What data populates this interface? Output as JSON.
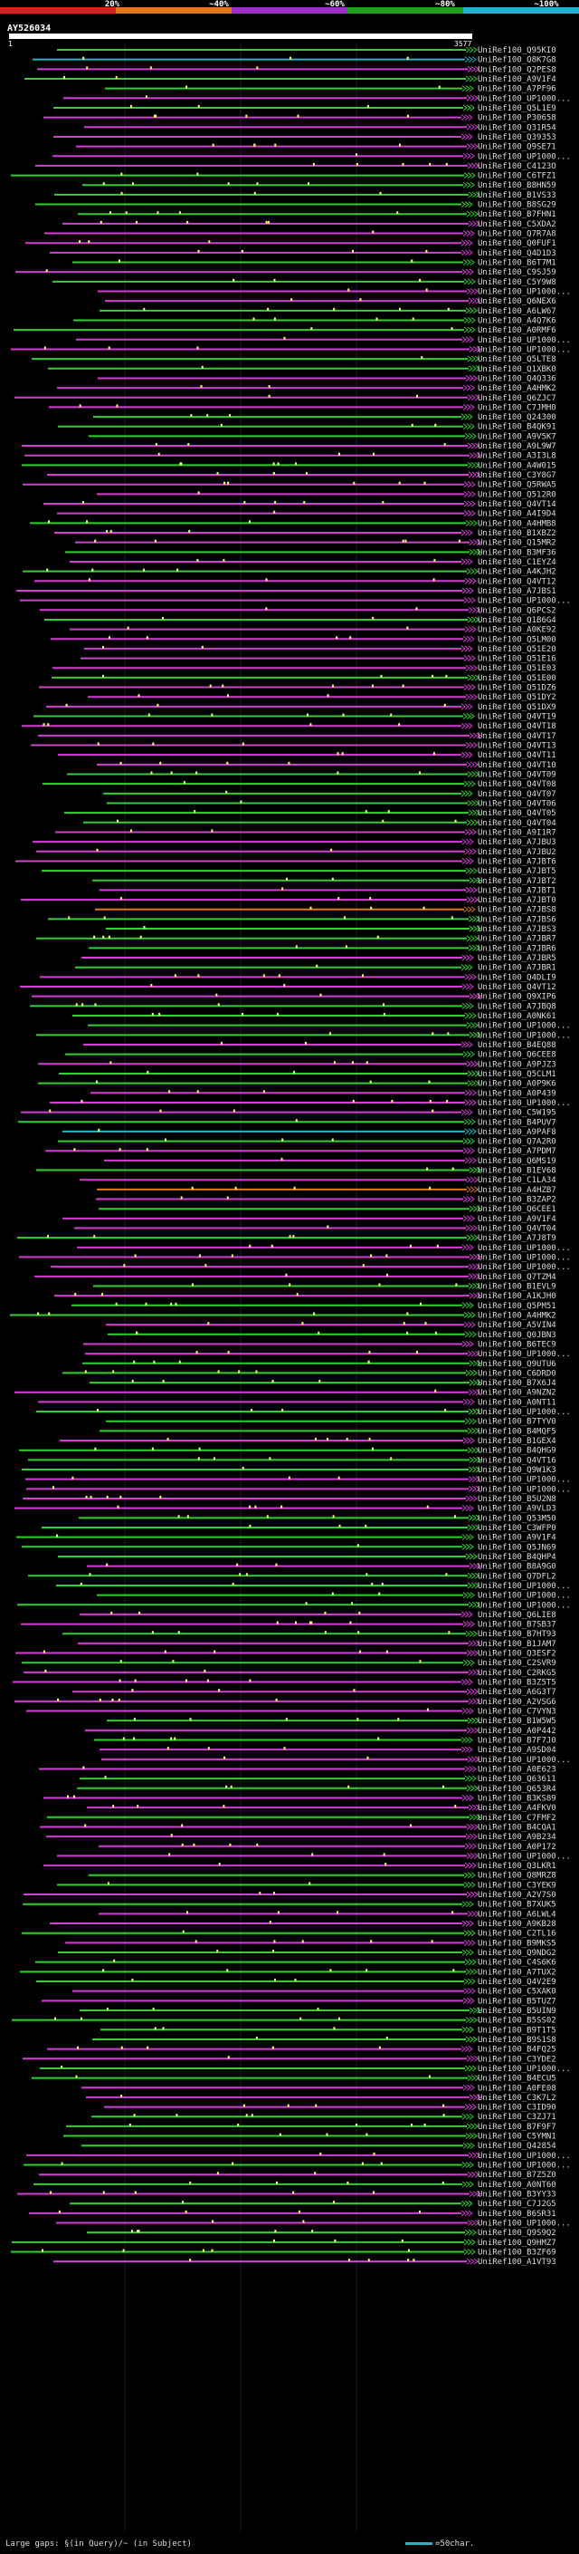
{
  "scale_labels": [
    "20%",
    "~40%",
    "~60%",
    "~80%",
    "~100%"
  ],
  "scale_colors": [
    "#d62020",
    "#e07820",
    "#9b30c8",
    "#20a020",
    "#20b0d0"
  ],
  "query": {
    "name": "AY526034",
    "start": "1",
    "end": "3577"
  },
  "hits": [
    "UniRef100_Q95KI0",
    "UniRef100_Q8K7G8",
    "UniRef100_Q2PES8",
    "UniRef100_A9V1F4",
    "UniRef100_A7PF96",
    "UniRef100_UP1000...",
    "UniRef100_Q5L1E9",
    "UniRef100_P30658",
    "UniRef100_Q31R54",
    "UniRef100_Q39353",
    "UniRef100_Q9SE71",
    "UniRef100_UP1000...",
    "UniRef100_C4123O",
    "UniRef100_C6TFZ1",
    "UniRef100_B8HN59",
    "UniRef100_B1VS33",
    "UniRef100_B8SG29",
    "UniRef100_B7FHN1",
    "UniRef100_C5XDA2",
    "UniRef100_Q7R7A8",
    "UniRef100_Q0FUF1",
    "UniRef100_Q4D1D3",
    "UniRef100_B6T7M1",
    "UniRef100_C9SJ59",
    "UniRef100_C5Y9W8",
    "UniRef100_UP1000...",
    "UniRef100_Q6NEX6",
    "UniRef100_A6LW67",
    "UniRef100_A4Q7K6",
    "UniRef100_A0RMF6",
    "UniRef100_UP1000...",
    "UniRef100_UP1000...",
    "UniRef100_Q5LTE8",
    "UniRef100_Q1XBK0",
    "UniRef100_Q4Q336",
    "UniRef100_A4HMK2",
    "UniRef100_Q6ZJC7",
    "UniRef100_C7JMH0",
    "UniRef100_Q24300",
    "UniRef100_B4QK91",
    "UniRef100_A9V5K7",
    "UniRef100_A9L9W7",
    "UniRef100_A3I3L8",
    "UniRef100_A4W015",
    "UniRef100_C3Y8G7",
    "UniRef100_Q5RWA5",
    "UniRef100_Q512R0",
    "UniRef100_Q4VT14",
    "UniRef100_A4I9D4",
    "UniRef100_A4HMB8",
    "UniRef100_B1XBZ2",
    "UniRef100_Q15MR2",
    "UniRef100_B3MF36",
    "UniRef100_C1EYZ4",
    "UniRef100_A4KJH2",
    "UniRef100_Q4VT12",
    "UniRef100_A7JBS1",
    "UniRef100_UP1000...",
    "UniRef100_Q6PCS2",
    "UniRef100_Q1B6G4",
    "UniRef100_A0KE92",
    "UniRef100_Q5LM00",
    "UniRef100_Q51E20",
    "UniRef100_Q51E16",
    "UniRef100_Q51E03",
    "UniRef100_Q51E00",
    "UniRef100_Q51DZ6",
    "UniRef100_Q51DY2",
    "UniRef100_Q51DX9",
    "UniRef100_Q4VT19",
    "UniRef100_Q4VT18",
    "UniRef100_Q4VT17",
    "UniRef100_Q4VT13",
    "UniRef100_Q4VT11",
    "UniRef100_Q4VT10",
    "UniRef100_Q4VT09",
    "UniRef100_Q4VT08",
    "UniRef100_Q4VT07",
    "UniRef100_Q4VT06",
    "UniRef100_Q4VT05",
    "UniRef100_Q4VT04",
    "UniRef100_A9I1R7",
    "UniRef100_A7JBU3",
    "UniRef100_A7JBU2",
    "UniRef100_A7JBT6",
    "UniRef100_A7JBT5",
    "UniRef100_A7JBT2",
    "UniRef100_A7JBT1",
    "UniRef100_A7JBT0",
    "UniRef100_A7JBS8",
    "UniRef100_A7JBS6",
    "UniRef100_A7JBS3",
    "UniRef100_A7JBR7",
    "UniRef100_A7JBR6",
    "UniRef100_A7JBR5",
    "UniRef100_A7JBR1",
    "UniRef100_Q4DLI9",
    "UniRef100_Q4VT12",
    "UniRef100_Q9XIP6",
    "UniRef100_A7JBQ8",
    "UniRef100_A0NK61",
    "UniRef100_UP1000...",
    "UniRef100_UP1000...",
    "UniRef100_B4EQ88",
    "UniRef100_Q6CEE8",
    "UniRef100_A9PJZ3",
    "UniRef100_Q5CLM1",
    "UniRef100_A0P9K6",
    "UniRef100_A0P439",
    "UniRef100_UP1000...",
    "UniRef100_C5W195",
    "UniRef100_B4PUV7",
    "UniRef100_A9PAF8",
    "UniRef100_Q7A2R0",
    "UniRef100_A7PDM7",
    "UniRef100_Q6MS19",
    "UniRef100_B1EV68",
    "UniRef100_C1LA34",
    "UniRef100_A4HZB7",
    "UniRef100_B3ZAP2",
    "UniRef100_Q6CEE1",
    "UniRef100_A9V1F4",
    "UniRef100_Q4VT04",
    "UniRef100_A7J8T9",
    "UniRef100_UP1000...",
    "UniRef100_UP1000...",
    "UniRef100_UP1000...",
    "UniRef100_Q7TZM4",
    "UniRef100_B1EVL9",
    "UniRef100_A1KJH0",
    "UniRef100_Q5PM51",
    "UniRef100_A4HMK2",
    "UniRef100_A5VIN4",
    "UniRef100_Q0JBN3",
    "UniRef100_B6TEC9",
    "UniRef100_UP1000...",
    "UniRef100_Q9UTU6",
    "UniRef100_C6DRD0",
    "UniRef100_B7X6J4",
    "UniRef100_A9NZN2",
    "UniRef100_A0NT11",
    "UniRef100_UP1000...",
    "UniRef100_B7TYV0",
    "UniRef100_B4MQF5",
    "UniRef100_B1GEX4",
    "UniRef100_B4QHG9",
    "UniRef100_Q4VT16",
    "UniRef100_Q9W1K3",
    "UniRef100_UP1000...",
    "UniRef100_UP1000...",
    "UniRef100_B5U2N8",
    "UniRef100_A9VLD3",
    "UniRef100_Q53M50",
    "UniRef100_C3WFP0",
    "UniRef100_A9V1F4",
    "UniRef100_Q5JN69",
    "UniRef100_B4QHP4",
    "UniRef100_B8A9G0",
    "UniRef100_Q7DFL2",
    "UniRef100_UP1000...",
    "UniRef100_UP1000...",
    "UniRef100_UP1000...",
    "UniRef100_Q6LIE8",
    "UniRef100_B7SB37",
    "UniRef100_B7HT93",
    "UniRef100_B1JAM7",
    "UniRef100_Q3ESF2",
    "UniRef100_C2SVR9",
    "UniRef100_C2RKG5",
    "UniRef100_B3Z5T5",
    "UniRef100_A6G3T7",
    "UniRef100_A2VSG6",
    "UniRef100_C7VYN3",
    "UniRef100_B1W5W5",
    "UniRef100_A0P442",
    "UniRef100_B7F7J0",
    "UniRef100_A9SD04",
    "UniRef100_UP1000...",
    "UniRef100_A0E623",
    "UniRef100_Q63611",
    "UniRef100_Q653R4",
    "UniRef100_B3KS89",
    "UniRef100_A4FKV0",
    "UniRef100_C7FMF2",
    "UniRef100_B4CQA1",
    "UniRef100_A9B234",
    "UniRef100_A0P172",
    "UniRef100_UP1000...",
    "UniRef100_Q3LKR1",
    "UniRef100_Q8MRZ8",
    "UniRef100_C3YEK9",
    "UniRef100_A2V7S0",
    "UniRef100_B7XUK5",
    "UniRef100_A6LWL4",
    "UniRef100_A9KB28",
    "UniRef100_C2TL16",
    "UniRef100_B9MKS5",
    "UniRef100_Q9NDG2",
    "UniRef100_C4S6K6",
    "UniRef100_A7TUX2",
    "UniRef100_Q4V2E9",
    "UniRef100_C5XAK0",
    "UniRef100_B5TUZ7",
    "UniRef100_B5UIN9",
    "UniRef100_B5SS02",
    "UniRef100_B9T1T5",
    "UniRef100_B9S1S8",
    "UniRef100_B4FQ25",
    "UniRef100_C3YDE2",
    "UniRef100_UP1000...",
    "UniRef100_B4ECU5",
    "UniRef100_A0FE08",
    "UniRef100_C3K7L2",
    "UniRef100_C3ID90",
    "UniRef100_C3ZJ71",
    "UniRef100_B7F9F7",
    "UniRef100_C5YMN1",
    "UniRef100_Q42854",
    "UniRef100_UP1000...",
    "UniRef100_UP1000...",
    "UniRef100_B7Z5Z0",
    "UniRef100_A0NT60",
    "UniRef100_B3YY33",
    "UniRef100_C7J2G5",
    "UniRef100_B6SR31",
    "UniRef100_UP1000...",
    "UniRef100_Q9S9Q2",
    "UniRef100_Q9HMZ7",
    "UniRef100_B3ZF69",
    "UniRef100_A1VT93"
  ],
  "footer": {
    "large_gaps": "Large gaps: §(in Query)/~ (in Subject)",
    "scale_text": "=50char."
  }
}
